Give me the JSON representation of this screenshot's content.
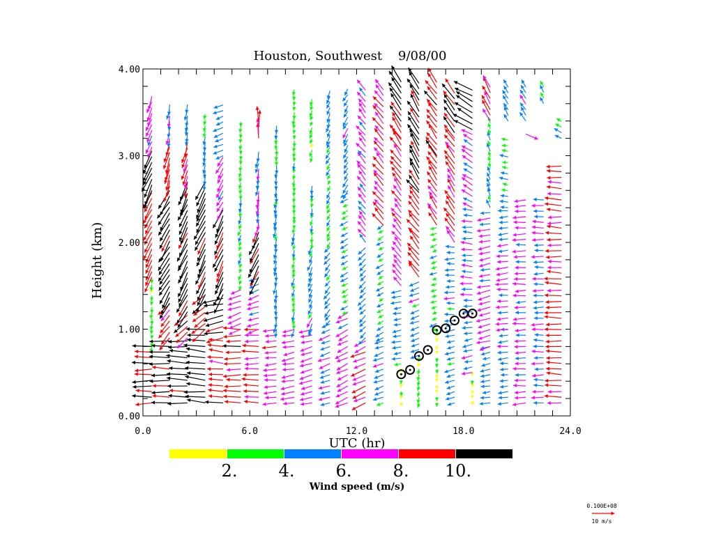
{
  "chart_data": {
    "type": "vector-wind-profile",
    "title": "Houston, Southwest    9/08/00",
    "xlabel": "UTC (hr)",
    "ylabel": "Height (km)",
    "xlim": [
      0,
      24
    ],
    "ylim": [
      0,
      4
    ],
    "x_tick_labels": [
      "0.0",
      "6.0",
      "12.0",
      "18.0",
      "24.0"
    ],
    "y_tick_labels": [
      "0.00",
      "1.00",
      "2.00",
      "3.00",
      "4.00"
    ],
    "row_spacing_km": 0.065,
    "colorbar": {
      "label": "Wind speed (m/s)",
      "bounds": [
        0,
        2,
        4,
        6,
        8,
        10,
        12
      ],
      "tick_labels": [
        "2.",
        "4.",
        "6.",
        "8.",
        "10."
      ],
      "colors": [
        "#ffff00",
        "#00ff00",
        "#0080ff",
        "#ff00ff",
        "#ff0000",
        "#000000"
      ]
    },
    "reference_vector": {
      "label_top": "0.100E+08",
      "label_bottom": "10 m/s",
      "speed": 10,
      "color": "#ff0000"
    },
    "columns_note": "layers: [from_km, to_km, speed_m_s, arrow_angle_deg]",
    "columns": [
      {
        "t": 0.5,
        "layers": [
          [
            0.15,
            0.8,
            10,
            182
          ],
          [
            0.8,
            1.6,
            2.5,
            265
          ],
          [
            1.6,
            2.6,
            9,
            245
          ],
          [
            2.6,
            3.1,
            11,
            245
          ],
          [
            3.1,
            3.7,
            7,
            250
          ]
        ]
      },
      {
        "t": 1.5,
        "layers": [
          [
            0.15,
            0.9,
            10.5,
            180
          ],
          [
            0.9,
            1.3,
            8,
            230
          ],
          [
            1.3,
            2.6,
            11,
            240
          ],
          [
            2.65,
            3.2,
            9,
            255
          ],
          [
            3.2,
            3.65,
            6,
            260
          ]
        ]
      },
      {
        "t": 2.5,
        "layers": [
          [
            0.15,
            0.9,
            11,
            178
          ],
          [
            0.9,
            1.2,
            9,
            220
          ],
          [
            1.2,
            2.7,
            11,
            245
          ],
          [
            2.7,
            3.2,
            8,
            255
          ],
          [
            3.2,
            3.6,
            5,
            260
          ]
        ]
      },
      {
        "t": 3.5,
        "layers": [
          [
            0.15,
            1.0,
            11,
            175
          ],
          [
            1.0,
            1.4,
            9,
            220
          ],
          [
            1.4,
            2.7,
            11,
            245
          ],
          [
            2.7,
            3.5,
            4,
            260
          ]
        ]
      },
      {
        "t": 4.5,
        "layers": [
          [
            0.15,
            0.9,
            9,
            175
          ],
          [
            0.9,
            1.4,
            10.5,
            190
          ],
          [
            1.4,
            2.4,
            10.5,
            245
          ],
          [
            2.4,
            3.0,
            7,
            240
          ],
          [
            3.0,
            3.6,
            5,
            200
          ]
        ]
      },
      {
        "t": 5.5,
        "layers": [
          [
            0.15,
            1.0,
            9,
            180
          ],
          [
            1.0,
            1.5,
            7,
            200
          ],
          [
            1.5,
            2.3,
            3,
            250
          ],
          [
            2.3,
            3.0,
            3.5,
            260
          ],
          [
            3.0,
            3.45,
            3,
            265
          ]
        ]
      },
      {
        "t": 6.5,
        "layers": [
          [
            0.15,
            1.0,
            8.5,
            180
          ],
          [
            1.0,
            1.6,
            6,
            200
          ],
          [
            1.6,
            2.2,
            10.5,
            245
          ],
          [
            2.2,
            3.1,
            6,
            260
          ],
          [
            3.2,
            3.4,
            8.5,
            90
          ]
        ]
      },
      {
        "t": 7.5,
        "layers": [
          [
            0.15,
            1.0,
            7,
            185
          ],
          [
            1.0,
            2.5,
            5,
            260
          ],
          [
            2.5,
            3.4,
            4.5,
            265
          ]
        ]
      },
      {
        "t": 8.5,
        "layers": [
          [
            0.15,
            1.0,
            7,
            190
          ],
          [
            1.0,
            2.2,
            4,
            255
          ],
          [
            2.2,
            3.8,
            3,
            265
          ]
        ]
      },
      {
        "t": 9.5,
        "layers": [
          [
            0.15,
            1.0,
            6.5,
            195
          ],
          [
            1.0,
            2.0,
            5,
            245
          ],
          [
            2.0,
            2.7,
            3.5,
            260
          ],
          [
            3.0,
            3.7,
            3,
            250
          ]
        ]
      },
      {
        "t": 10.5,
        "layers": [
          [
            0.15,
            1.1,
            6,
            200
          ],
          [
            1.1,
            2.0,
            4.5,
            230
          ],
          [
            2.0,
            3.1,
            3.5,
            240
          ],
          [
            3.1,
            3.8,
            4.5,
            250
          ]
        ]
      },
      {
        "t": 11.5,
        "layers": [
          [
            0.15,
            1.2,
            7,
            205
          ],
          [
            1.2,
            2.6,
            4,
            210
          ],
          [
            2.6,
            3.8,
            5,
            240
          ]
        ]
      },
      {
        "t": 12.5,
        "layers": [
          [
            0.15,
            0.9,
            8,
            205
          ],
          [
            0.9,
            2.0,
            5,
            225
          ],
          [
            2.0,
            3.8,
            6.5,
            130
          ]
        ]
      },
      {
        "t": 13.5,
        "layers": [
          [
            0.15,
            0.9,
            5,
            200
          ],
          [
            0.9,
            2.2,
            4,
            210
          ],
          [
            2.2,
            3.8,
            8,
            130
          ]
        ]
      },
      {
        "t": 14.5,
        "layers": [
          [
            0.15,
            0.6,
            1.5,
            270
          ],
          [
            0.6,
            1.5,
            5,
            190
          ],
          [
            1.5,
            2.6,
            7,
            130
          ],
          [
            2.6,
            3.2,
            9,
            125
          ],
          [
            3.2,
            3.85,
            10.5,
            125
          ]
        ]
      },
      {
        "t": 15.5,
        "layers": [
          [
            0.15,
            0.7,
            3,
            260
          ],
          [
            0.7,
            1.6,
            5,
            200
          ],
          [
            1.6,
            2.6,
            9,
            130
          ],
          [
            2.6,
            3.85,
            10.5,
            120
          ]
        ]
      },
      {
        "t": 16.5,
        "layers": [
          [
            0.15,
            1.0,
            1.5,
            270
          ],
          [
            1.0,
            2.2,
            3.5,
            200
          ],
          [
            2.2,
            3.0,
            8.5,
            125
          ],
          [
            3.0,
            3.85,
            9.5,
            125
          ]
        ]
      },
      {
        "t": 17.5,
        "layers": [
          [
            0.15,
            1.1,
            5,
            195
          ],
          [
            1.1,
            2.0,
            5,
            180
          ],
          [
            2.0,
            3.2,
            8.5,
            125
          ],
          [
            3.2,
            3.75,
            10.5,
            125
          ]
        ]
      },
      {
        "t": 18.5,
        "layers": [
          [
            0.15,
            0.5,
            1.5,
            270
          ],
          [
            0.5,
            1.2,
            5.5,
            190
          ],
          [
            1.2,
            2.4,
            6,
            175
          ],
          [
            2.4,
            3.3,
            6.5,
            150
          ],
          [
            3.3,
            3.8,
            11,
            150
          ]
        ]
      },
      {
        "t": 19.5,
        "layers": [
          [
            0.15,
            0.8,
            5,
            190
          ],
          [
            0.8,
            1.5,
            7,
            195
          ],
          [
            1.5,
            2.4,
            6.5,
            190
          ],
          [
            2.4,
            3.4,
            4,
            110
          ],
          [
            3.4,
            3.8,
            8.5,
            120
          ]
        ]
      },
      {
        "t": 20.5,
        "layers": [
          [
            0.15,
            1.0,
            5,
            185
          ],
          [
            1.0,
            2.4,
            6,
            185
          ],
          [
            2.4,
            3.2,
            4,
            170
          ],
          [
            3.4,
            3.8,
            5,
            120
          ]
        ]
      },
      {
        "t": 21.5,
        "layers": [
          [
            0.15,
            2.5,
            6.5,
            182
          ],
          [
            3.25,
            3.3,
            8.5,
            340
          ],
          [
            3.4,
            3.85,
            5,
            125
          ]
        ]
      },
      {
        "t": 22.5,
        "layers": [
          [
            0.15,
            2.5,
            6,
            180
          ],
          [
            3.6,
            3.8,
            4,
            120
          ]
        ]
      },
      {
        "t": 23.5,
        "layers": [
          [
            0.15,
            2.9,
            8.5,
            178
          ],
          [
            3.2,
            3.4,
            4,
            150
          ]
        ]
      }
    ],
    "markers": {
      "name": "boundary layer height",
      "points": [
        [
          14.5,
          0.48
        ],
        [
          15.0,
          0.53
        ],
        [
          15.5,
          0.69
        ],
        [
          16.0,
          0.76
        ],
        [
          16.5,
          0.99
        ],
        [
          17.0,
          1.01
        ],
        [
          17.5,
          1.1
        ],
        [
          18.0,
          1.18
        ],
        [
          18.5,
          1.18
        ]
      ]
    }
  }
}
